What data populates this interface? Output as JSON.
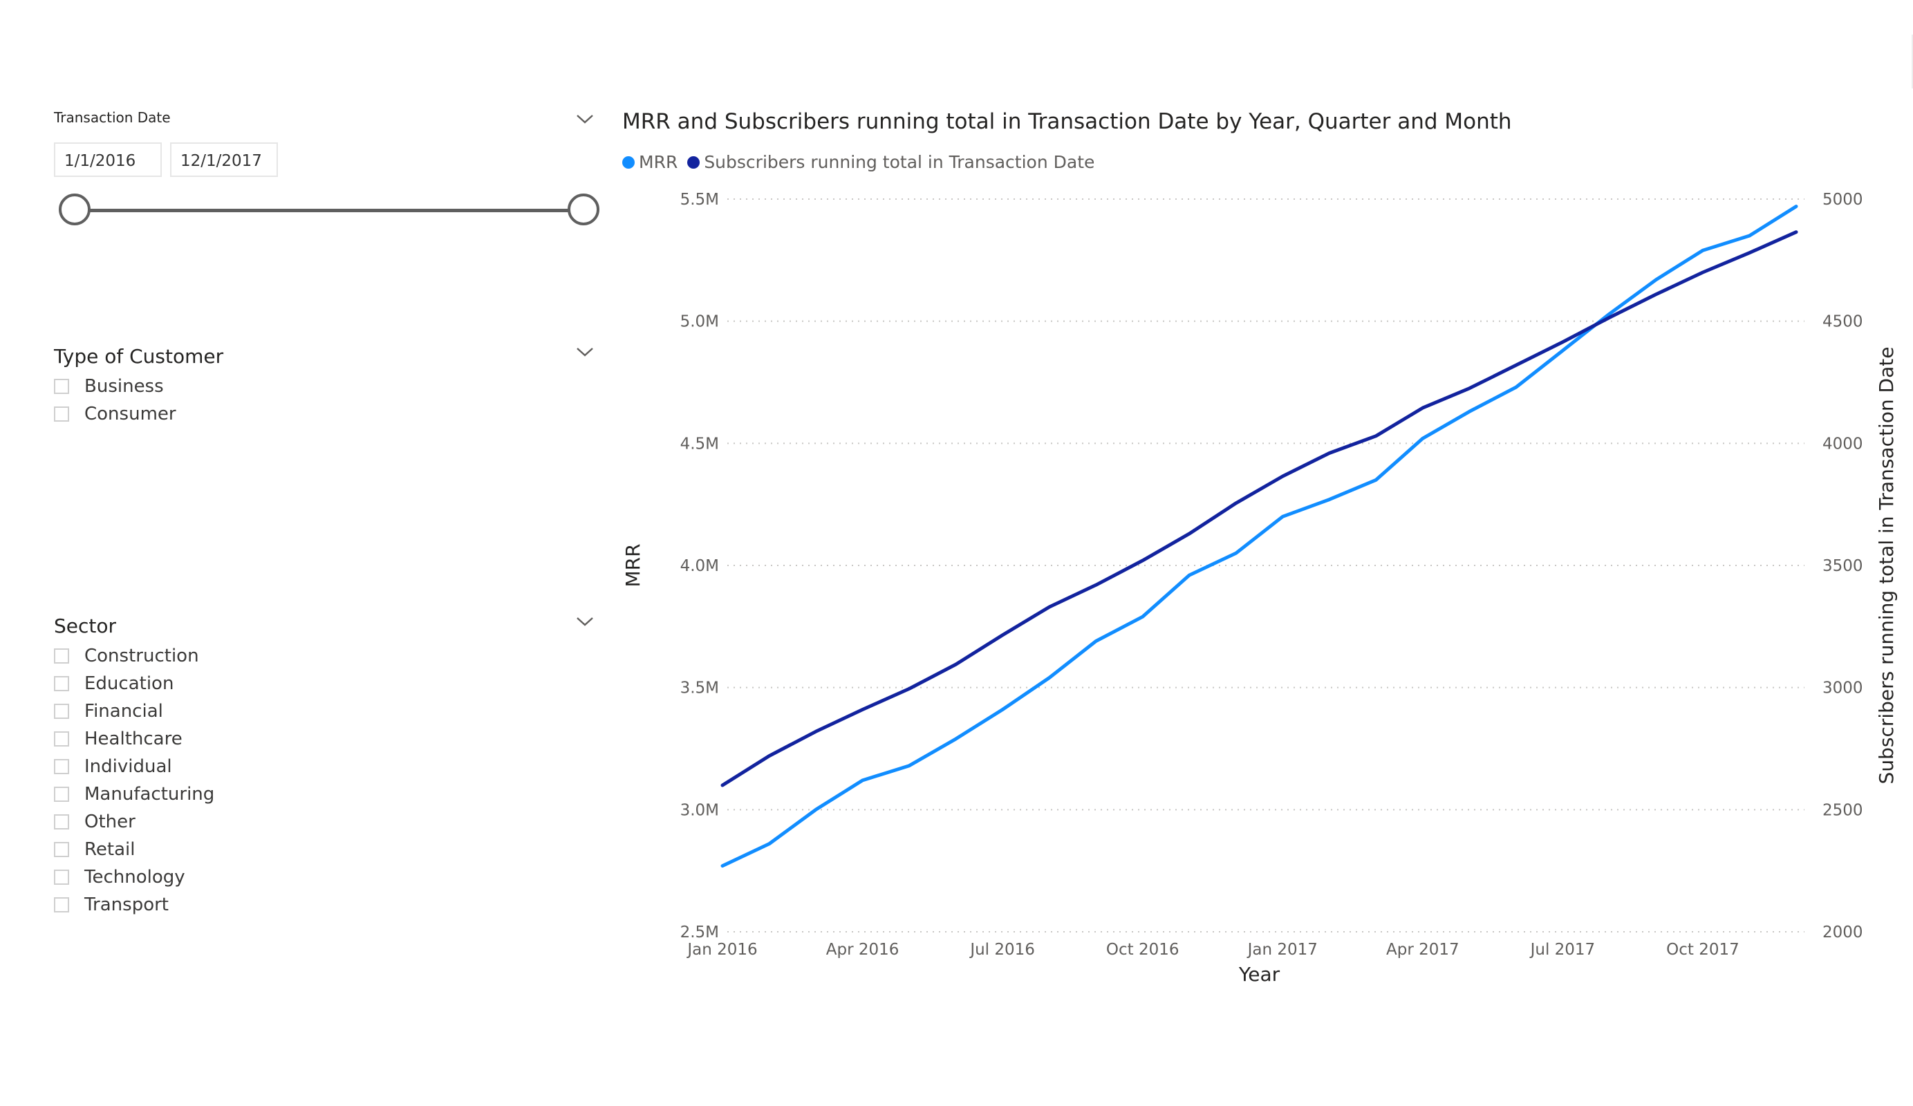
{
  "date_slicer": {
    "title": "Transaction Date",
    "start": "1/1/2016",
    "end": "12/1/2017"
  },
  "customer_slicer": {
    "title": "Type of Customer",
    "items": [
      "Business",
      "Consumer"
    ]
  },
  "sector_slicer": {
    "title": "Sector",
    "items": [
      "Construction",
      "Education",
      "Financial",
      "Healthcare",
      "Individual",
      "Manufacturing",
      "Other",
      "Retail",
      "Technology",
      "Transport"
    ]
  },
  "colors": {
    "mrr": "#118dff",
    "subscribers": "#12239e",
    "gridline": "#c8c6c4"
  },
  "chart_data": {
    "type": "line",
    "title": "MRR and Subscribers running total in Transaction Date by Year, Quarter and Month",
    "xlabel": "Year",
    "ylabel": "MRR",
    "ylabel_right": "Subscribers running total in Transaction Date",
    "x": [
      "2016-01",
      "2016-02",
      "2016-03",
      "2016-04",
      "2016-05",
      "2016-06",
      "2016-07",
      "2016-08",
      "2016-09",
      "2016-10",
      "2016-11",
      "2016-12",
      "2017-01",
      "2017-02",
      "2017-03",
      "2017-04",
      "2017-05",
      "2017-06",
      "2017-07",
      "2017-08",
      "2017-09",
      "2017-10",
      "2017-11",
      "2017-12"
    ],
    "x_tick_labels": [
      "Jan 2016",
      "Apr 2016",
      "Jul 2016",
      "Oct 2016",
      "Jan 2017",
      "Apr 2017",
      "Jul 2017",
      "Oct 2017"
    ],
    "ylim": [
      2500000,
      5500000
    ],
    "ylim_right": [
      2000,
      5000
    ],
    "y_tick_labels": [
      "2.5M",
      "3.0M",
      "3.5M",
      "4.0M",
      "4.5M",
      "5.0M",
      "5.5M"
    ],
    "y_right_tick_labels": [
      "2000",
      "2500",
      "3000",
      "3500",
      "4000",
      "4500",
      "5000"
    ],
    "grid": true,
    "legend_position": "top-left",
    "series": [
      {
        "name": "MRR",
        "axis": "left",
        "values": [
          2770000,
          2860000,
          3000000,
          3120000,
          3180000,
          3290000,
          3410000,
          3540000,
          3690000,
          3790000,
          3960000,
          4050000,
          4200000,
          4270000,
          4350000,
          4520000,
          4630000,
          4730000,
          4880000,
          5030000,
          5170000,
          5290000,
          5350000,
          5470000
        ]
      },
      {
        "name": "Subscribers running total in Transaction Date",
        "axis": "right",
        "values": [
          2600,
          2720,
          2820,
          2910,
          2995,
          3095,
          3215,
          3330,
          3420,
          3520,
          3630,
          3755,
          3865,
          3960,
          4030,
          4145,
          4225,
          4320,
          4415,
          4515,
          4610,
          4700,
          4780,
          4865
        ]
      }
    ]
  }
}
